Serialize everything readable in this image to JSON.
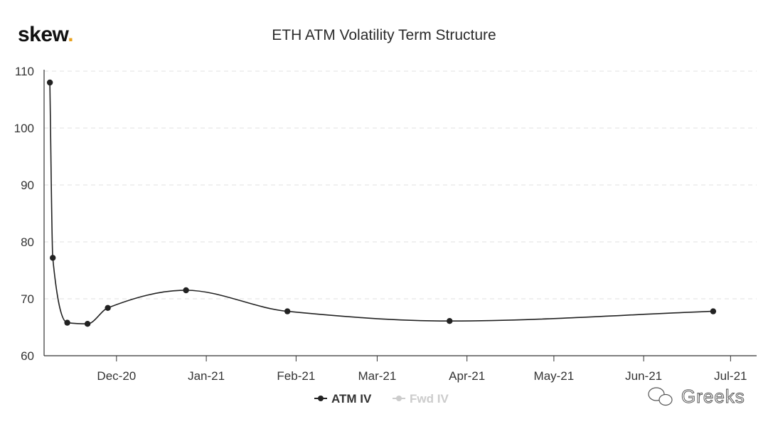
{
  "logo": {
    "text": "skew",
    "dot": "."
  },
  "chart_data": {
    "type": "line",
    "title": "ETH ATM Volatility Term Structure",
    "xlabel": "",
    "ylabel": "",
    "ylim": [
      60,
      110
    ],
    "yticks": [
      60,
      70,
      80,
      90,
      100,
      110
    ],
    "xlim": [
      "2020-11-06",
      "2021-07-10"
    ],
    "xticks": [
      {
        "date": "2020-12-01",
        "label": "Dec-20"
      },
      {
        "date": "2021-01-01",
        "label": "Jan-21"
      },
      {
        "date": "2021-02-01",
        "label": "Feb-21"
      },
      {
        "date": "2021-03-01",
        "label": "Mar-21"
      },
      {
        "date": "2021-04-01",
        "label": "Apr-21"
      },
      {
        "date": "2021-05-01",
        "label": "May-21"
      },
      {
        "date": "2021-06-01",
        "label": "Jun-21"
      },
      {
        "date": "2021-07-01",
        "label": "Jul-21"
      }
    ],
    "grid": true,
    "legend_position": "bottom-center",
    "series": [
      {
        "name": "ATM IV",
        "color": "#222222",
        "visible": true,
        "points": [
          {
            "x": "2020-11-08",
            "y": 108.0
          },
          {
            "x": "2020-11-09",
            "y": 77.2
          },
          {
            "x": "2020-11-14",
            "y": 65.8
          },
          {
            "x": "2020-11-21",
            "y": 65.6
          },
          {
            "x": "2020-11-28",
            "y": 68.4
          },
          {
            "x": "2020-12-25",
            "y": 71.5
          },
          {
            "x": "2021-01-29",
            "y": 67.8
          },
          {
            "x": "2021-03-26",
            "y": 66.1
          },
          {
            "x": "2021-06-25",
            "y": 67.8
          }
        ]
      },
      {
        "name": "Fwd IV",
        "color": "#cccccc",
        "visible": false,
        "points": []
      }
    ]
  },
  "watermark": {
    "icon": "wechat-icon",
    "text": "Greeks"
  }
}
